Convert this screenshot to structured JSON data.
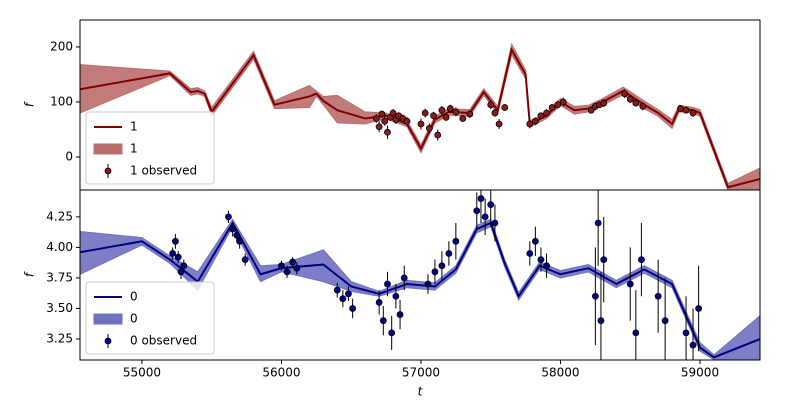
{
  "chart_data": [
    {
      "type": "line",
      "ylabel": "f",
      "xlim": [
        54556,
        59430
      ],
      "ylim": [
        -60,
        249
      ],
      "yticks": [
        0,
        100,
        200
      ],
      "legend": "lower left",
      "series": [
        {
          "name": "1",
          "kind": "line",
          "color": "#800000",
          "x": [
            54556,
            55200,
            55350,
            55400,
            55450,
            55500,
            55800,
            55950,
            56200,
            56250,
            56300,
            56400,
            56600,
            56750,
            56900,
            57000,
            57100,
            57200,
            57350,
            57450,
            57550,
            57650,
            57750,
            57780,
            57900,
            58000,
            58100,
            58200,
            58300,
            58450,
            58600,
            58700,
            58800,
            58850,
            58950,
            59000,
            59200,
            59430
          ],
          "values": [
            123,
            152,
            118,
            120,
            115,
            82,
            185,
            95,
            110,
            115,
            102,
            85,
            70,
            75,
            60,
            15,
            68,
            82,
            80,
            118,
            85,
            195,
            150,
            60,
            75,
            100,
            85,
            88,
            100,
            120,
            95,
            80,
            60,
            88,
            85,
            80,
            -55,
            -40
          ]
        },
        {
          "name": "1",
          "kind": "band",
          "color": "#bb6d6d",
          "x": [
            54556,
            55200,
            55350,
            55400,
            55450,
            55500,
            55800,
            55950,
            56200,
            56250,
            56300,
            56400,
            56600,
            56750,
            56900,
            57000,
            57100,
            57200,
            57350,
            57450,
            57550,
            57650,
            57750,
            57780,
            57900,
            58000,
            58100,
            58200,
            58300,
            58450,
            58600,
            58700,
            58800,
            58850,
            58950,
            59000,
            59200,
            59430
          ],
          "lower": [
            80,
            148,
            112,
            115,
            110,
            75,
            178,
            88,
            90,
            110,
            95,
            62,
            60,
            70,
            55,
            8,
            62,
            76,
            74,
            112,
            78,
            186,
            142,
            54,
            70,
            94,
            78,
            82,
            94,
            113,
            88,
            74,
            52,
            82,
            80,
            74,
            -60,
            -60
          ],
          "upper": [
            168,
            156,
            124,
            126,
            120,
            90,
            192,
            102,
            130,
            120,
            110,
            112,
            82,
            80,
            66,
            22,
            74,
            88,
            86,
            124,
            92,
            205,
            158,
            66,
            80,
            106,
            92,
            94,
            106,
            127,
            102,
            86,
            68,
            94,
            90,
            86,
            -48,
            -20
          ]
        },
        {
          "name": "1 observed",
          "kind": "observed",
          "color": "#8b1a1a",
          "x": [
            56680,
            56700,
            56720,
            56740,
            56760,
            56780,
            56800,
            56820,
            56840,
            56870,
            56900,
            57000,
            57030,
            57060,
            57090,
            57120,
            57150,
            57180,
            57210,
            57250,
            57300,
            57350,
            57500,
            57530,
            57560,
            57600,
            57780,
            57820,
            57860,
            57900,
            57940,
            57980,
            58020,
            58220,
            58250,
            58280,
            58310,
            58460,
            58500,
            58540,
            58590,
            58860,
            58900,
            58950
          ],
          "values": [
            70,
            55,
            78,
            65,
            45,
            72,
            80,
            68,
            75,
            70,
            65,
            60,
            80,
            52,
            75,
            40,
            85,
            72,
            88,
            82,
            70,
            78,
            95,
            80,
            60,
            90,
            60,
            65,
            75,
            80,
            90,
            95,
            100,
            85,
            92,
            95,
            98,
            115,
            105,
            98,
            92,
            88,
            85,
            80
          ],
          "errors": [
            8,
            10,
            6,
            8,
            12,
            6,
            7,
            8,
            6,
            7,
            8,
            10,
            8,
            9,
            7,
            10,
            8,
            6,
            7,
            8,
            6,
            7,
            8,
            7,
            9,
            6,
            8,
            7,
            6,
            7,
            6,
            7,
            8,
            6,
            7,
            6,
            7,
            8,
            7,
            6,
            7,
            6,
            6,
            7
          ]
        }
      ]
    },
    {
      "type": "line",
      "ylabel": "f",
      "xlabel": "t",
      "xlim": [
        54556,
        59430
      ],
      "ylim": [
        3.078,
        4.47
      ],
      "xticks": [
        55000,
        56000,
        57000,
        58000,
        59000
      ],
      "yticks": [
        3.25,
        {
          "value": 3.5,
          "label": "3.50"
        },
        3.75,
        {
          "value": 4.0,
          "label": "4.00"
        },
        4.25
      ],
      "legend": "lower left",
      "series": [
        {
          "name": "0",
          "kind": "line",
          "color": "#000080",
          "x": [
            54556,
            55000,
            55200,
            55400,
            55650,
            55850,
            56000,
            56300,
            56500,
            56700,
            56900,
            57100,
            57250,
            57400,
            57500,
            57600,
            57700,
            57850,
            58000,
            58200,
            58400,
            58600,
            58800,
            59000,
            59100,
            59430
          ],
          "values": [
            3.96,
            4.05,
            3.9,
            3.72,
            4.2,
            3.78,
            3.83,
            3.86,
            3.68,
            3.62,
            3.7,
            3.68,
            3.82,
            4.15,
            4.2,
            3.87,
            3.6,
            3.85,
            3.78,
            3.83,
            3.7,
            3.82,
            3.7,
            3.18,
            3.1,
            3.25
          ]
        },
        {
          "name": "0",
          "kind": "band",
          "color": "#7070c0",
          "x": [
            54556,
            55000,
            55200,
            55400,
            55650,
            55850,
            56000,
            56300,
            56500,
            56700,
            56900,
            57100,
            57250,
            57400,
            57500,
            57600,
            57700,
            57850,
            58000,
            58200,
            58400,
            58600,
            58800,
            59000,
            59100,
            59430
          ],
          "lower": [
            3.78,
            4.02,
            3.87,
            3.65,
            4.17,
            3.72,
            3.8,
            3.72,
            3.64,
            3.6,
            3.67,
            3.65,
            3.79,
            4.12,
            4.17,
            3.84,
            3.57,
            3.82,
            3.75,
            3.8,
            3.67,
            3.79,
            3.67,
            3.15,
            3.08,
            3.08
          ],
          "upper": [
            4.13,
            4.08,
            3.93,
            3.8,
            4.23,
            3.85,
            3.86,
            3.98,
            3.72,
            3.64,
            3.73,
            3.71,
            3.85,
            4.18,
            4.23,
            3.9,
            3.63,
            3.88,
            3.81,
            3.86,
            3.73,
            3.85,
            3.73,
            3.22,
            3.12,
            3.44
          ]
        },
        {
          "name": "0 observed",
          "kind": "observed",
          "color": "#00008b",
          "x": [
            55220,
            55240,
            55260,
            55280,
            55300,
            55620,
            55650,
            55680,
            55700,
            55740,
            56000,
            56040,
            56080,
            56110,
            56400,
            56440,
            56480,
            56510,
            56700,
            56730,
            56760,
            56790,
            56820,
            56850,
            56880,
            57050,
            57100,
            57150,
            57200,
            57250,
            57400,
            57430,
            57460,
            57500,
            57530,
            57780,
            57820,
            57860,
            57900,
            58250,
            58270,
            58290,
            58310,
            58500,
            58540,
            58580,
            58700,
            58750,
            58900,
            58950,
            58990
          ],
          "values": [
            3.95,
            4.05,
            3.92,
            3.8,
            3.85,
            4.25,
            4.15,
            4.1,
            4.05,
            3.9,
            3.85,
            3.8,
            3.88,
            3.83,
            3.65,
            3.58,
            3.62,
            3.5,
            3.55,
            3.4,
            3.7,
            3.3,
            3.6,
            3.45,
            3.75,
            3.7,
            3.8,
            3.85,
            3.95,
            4.05,
            4.3,
            4.4,
            4.25,
            4.35,
            4.2,
            3.95,
            4.05,
            3.9,
            3.85,
            3.6,
            4.2,
            3.4,
            3.9,
            3.7,
            3.3,
            3.9,
            3.6,
            3.4,
            3.3,
            3.2,
            3.5
          ],
          "errors": [
            0.05,
            0.06,
            0.05,
            0.06,
            0.05,
            0.05,
            0.06,
            0.05,
            0.06,
            0.05,
            0.04,
            0.05,
            0.04,
            0.05,
            0.06,
            0.07,
            0.06,
            0.08,
            0.1,
            0.12,
            0.1,
            0.14,
            0.1,
            0.12,
            0.1,
            0.08,
            0.1,
            0.12,
            0.1,
            0.15,
            0.15,
            0.2,
            0.15,
            0.18,
            0.15,
            0.1,
            0.12,
            0.1,
            0.1,
            0.4,
            0.35,
            0.4,
            0.35,
            0.3,
            0.35,
            0.3,
            0.3,
            0.35,
            0.3,
            0.3,
            0.35
          ]
        }
      ]
    }
  ]
}
